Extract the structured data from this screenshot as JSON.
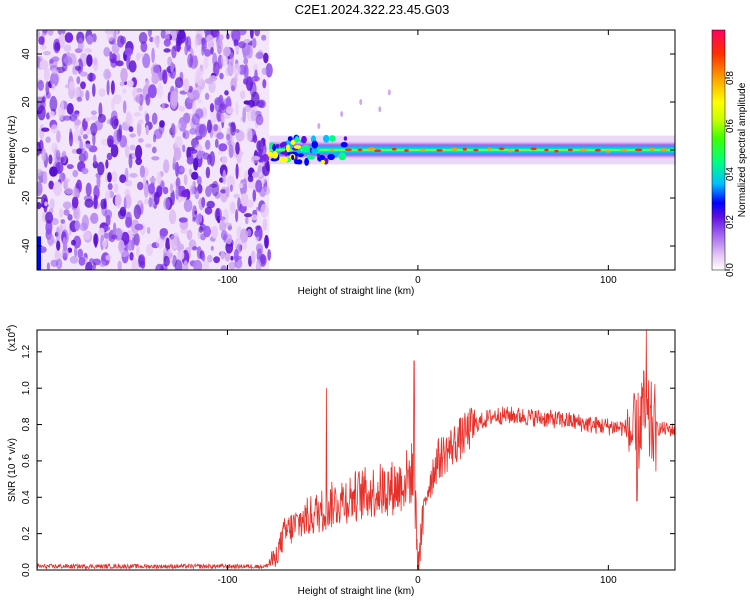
{
  "title": "C2E1.2024.322.23.45.G03",
  "chart_data": [
    {
      "type": "heatmap",
      "xlabel": "Height of straight line (km)",
      "ylabel": "Frequency (Hz)",
      "xlim": [
        -200,
        135
      ],
      "ylim": [
        -50,
        50
      ],
      "xticks": [
        -100,
        0,
        100
      ],
      "yticks": [
        -40,
        -20,
        0,
        20,
        40
      ],
      "colorbar": {
        "label": "Normalized spectral amplitude",
        "range": [
          0,
          1
        ],
        "ticks": [
          "0.0",
          "0.2",
          "0.4",
          "0.6",
          "0.8"
        ],
        "colors": [
          "#ffffff",
          "#e6c8f5",
          "#a060f0",
          "#6010e0",
          "#0000ff",
          "#00c0ff",
          "#00ff80",
          "#40ff00",
          "#c0ff00",
          "#ffff00",
          "#ffa000",
          "#ff3000",
          "#ff0060"
        ]
      },
      "features": [
        {
          "name": "broadband-noise",
          "x_range": [
            -200,
            -78
          ],
          "freq_range": [
            -50,
            50
          ],
          "amplitude": 0.25
        },
        {
          "name": "signal-band",
          "x_range": [
            -78,
            135
          ],
          "center_freq": 0,
          "amplitude": 0.9
        }
      ]
    },
    {
      "type": "line",
      "xlabel": "Height of straight line (km)",
      "ylabel": "SNR (10 * v/v)",
      "y_multiplier": "(x10",
      "y_multiplier_exp": "4",
      "y_multiplier_close": ")",
      "xlim": [
        -200,
        135
      ],
      "ylim": [
        0,
        1.32
      ],
      "xticks": [
        -100,
        0,
        100
      ],
      "yticks": [
        "0.0",
        "0.2",
        "0.4",
        "0.6",
        "0.8",
        "1.0",
        "1.2"
      ],
      "color": "#e8302a",
      "envelope": {
        "x": [
          -200,
          -150,
          -100,
          -80,
          -75,
          -70,
          -60,
          -50,
          -40,
          -30,
          -20,
          -10,
          -2,
          0,
          5,
          10,
          20,
          30,
          40,
          50,
          60,
          70,
          80,
          90,
          100,
          110,
          115,
          118,
          120,
          125,
          135
        ],
        "y": [
          0.02,
          0.02,
          0.02,
          0.02,
          0.05,
          0.18,
          0.25,
          0.3,
          0.35,
          0.38,
          0.4,
          0.42,
          0.5,
          0.05,
          0.45,
          0.6,
          0.7,
          0.8,
          0.85,
          0.85,
          0.84,
          0.83,
          0.82,
          0.8,
          0.79,
          0.78,
          0.7,
          0.9,
          0.8,
          0.78,
          0.77
        ]
      },
      "spikes": [
        {
          "x": -48,
          "y": 1.0
        },
        {
          "x": -2,
          "y": 1.15
        },
        {
          "x": 0,
          "y": 0.0
        },
        {
          "x": 115,
          "y": 0.38
        },
        {
          "x": 120,
          "y": 1.32
        }
      ]
    }
  ]
}
